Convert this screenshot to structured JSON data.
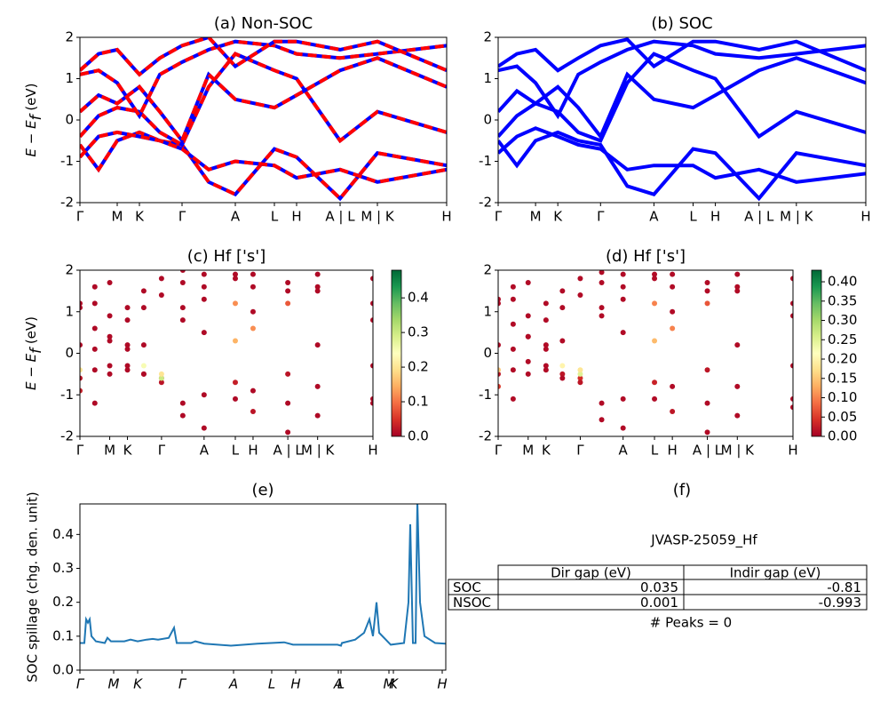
{
  "chart_data": [
    {
      "type": "line",
      "title": "(a) Non-SOC",
      "ylabel": {
        "symbol": "E − E",
        "subscript": "f",
        "unit": " (eV)"
      },
      "xlim": [
        0,
        4.13
      ],
      "ylim": [
        -2,
        2
      ],
      "yticks": [
        -2,
        -1,
        0,
        1,
        2
      ],
      "xticks": [
        {
          "value": 0,
          "label": "Γ"
        },
        {
          "value": 0.42,
          "label": "M"
        },
        {
          "value": 0.67,
          "label": "K"
        },
        {
          "value": 1.15,
          "label": "Γ"
        },
        {
          "value": 1.75,
          "label": "A"
        },
        {
          "value": 2.19,
          "label": "L"
        },
        {
          "value": 2.44,
          "label": "H"
        },
        {
          "value": 2.93,
          "label": "A | L"
        },
        {
          "value": 3.35,
          "label": "M | K"
        },
        {
          "value": 4.13,
          "label": "H"
        }
      ],
      "x": [
        0,
        0.21,
        0.42,
        0.67,
        0.9,
        1.15,
        1.45,
        1.75,
        2.19,
        2.44,
        2.93,
        3.35,
        4.13
      ],
      "color": "#ff0000",
      "underlay_color": "#0000ff",
      "dashed": true,
      "series": [
        {
          "values": [
            -0.6,
            -1.2,
            -0.5,
            -0.3,
            -0.5,
            -0.6,
            -1.5,
            -1.8,
            -0.7,
            -0.9,
            -1.9,
            -0.8,
            -1.1
          ]
        },
        {
          "values": [
            -0.9,
            -0.4,
            -0.3,
            -0.4,
            -0.5,
            -0.7,
            -1.2,
            -1.0,
            -1.1,
            -1.4,
            -1.2,
            -1.5,
            -1.2
          ]
        },
        {
          "values": [
            -0.4,
            0.1,
            0.3,
            0.2,
            -0.3,
            -0.6,
            0.8,
            1.6,
            1.2,
            1.0,
            -0.5,
            0.2,
            -0.3
          ]
        },
        {
          "values": [
            0.2,
            0.6,
            0.4,
            0.8,
            0.2,
            -0.5,
            1.1,
            0.5,
            0.3,
            0.6,
            1.2,
            1.5,
            0.8
          ]
        },
        {
          "values": [
            1.1,
            1.2,
            0.9,
            0.1,
            1.1,
            1.4,
            1.7,
            1.9,
            1.8,
            1.6,
            1.5,
            1.6,
            1.8
          ]
        },
        {
          "values": [
            1.2,
            1.6,
            1.7,
            1.1,
            1.5,
            1.8,
            2.0,
            1.3,
            1.9,
            1.9,
            1.7,
            1.9,
            1.2
          ]
        }
      ]
    },
    {
      "type": "line",
      "title": "(b) SOC",
      "xlim": [
        0,
        4.13
      ],
      "ylim": [
        -2,
        2
      ],
      "yticks": [
        -2,
        -1,
        0,
        1,
        2
      ],
      "xticks": [
        {
          "value": 0,
          "label": "Γ"
        },
        {
          "value": 0.42,
          "label": "M"
        },
        {
          "value": 0.67,
          "label": "K"
        },
        {
          "value": 1.15,
          "label": "Γ"
        },
        {
          "value": 1.75,
          "label": "A"
        },
        {
          "value": 2.19,
          "label": "L"
        },
        {
          "value": 2.44,
          "label": "H"
        },
        {
          "value": 2.93,
          "label": "A | L"
        },
        {
          "value": 3.35,
          "label": "M | K"
        },
        {
          "value": 4.13,
          "label": "H"
        }
      ],
      "x": [
        0,
        0.21,
        0.42,
        0.67,
        0.9,
        1.15,
        1.45,
        1.75,
        2.19,
        2.44,
        2.93,
        3.35,
        4.13
      ],
      "color": "#0000ff",
      "series": [
        {
          "values": [
            -0.5,
            -1.1,
            -0.5,
            -0.3,
            -0.5,
            -0.6,
            -1.6,
            -1.8,
            -0.7,
            -0.8,
            -1.9,
            -0.8,
            -1.1
          ]
        },
        {
          "values": [
            -0.8,
            -0.4,
            -0.2,
            -0.4,
            -0.6,
            -0.7,
            -1.2,
            -1.1,
            -1.1,
            -1.4,
            -1.2,
            -1.5,
            -1.3
          ]
        },
        {
          "values": [
            -0.4,
            0.1,
            0.4,
            0.2,
            -0.3,
            -0.5,
            0.9,
            1.6,
            1.2,
            1.0,
            -0.4,
            0.2,
            -0.3
          ]
        },
        {
          "values": [
            0.2,
            0.7,
            0.4,
            0.8,
            0.3,
            -0.4,
            1.1,
            0.5,
            0.3,
            0.6,
            1.2,
            1.5,
            0.9
          ]
        },
        {
          "values": [
            1.2,
            1.3,
            0.9,
            0.1,
            1.1,
            1.4,
            1.7,
            1.9,
            1.8,
            1.6,
            1.5,
            1.6,
            1.8
          ]
        },
        {
          "values": [
            1.3,
            1.6,
            1.7,
            1.2,
            1.5,
            1.8,
            1.95,
            1.3,
            1.9,
            1.9,
            1.7,
            1.9,
            1.2
          ]
        }
      ]
    },
    {
      "type": "scatter",
      "title": "(c)  Hf ['s']",
      "ylabel": {
        "symbol": "E − E",
        "subscript": "f",
        "unit": " (eV)"
      },
      "xlim": [
        0,
        4.13
      ],
      "ylim": [
        -2,
        2
      ],
      "yticks": [
        -2,
        -1,
        0,
        1,
        2
      ],
      "xticks": [
        {
          "value": 0,
          "label": "Γ"
        },
        {
          "value": 0.42,
          "label": "M"
        },
        {
          "value": 0.67,
          "label": "K"
        },
        {
          "value": 1.15,
          "label": "Γ"
        },
        {
          "value": 1.75,
          "label": "A"
        },
        {
          "value": 2.19,
          "label": "L"
        },
        {
          "value": 2.44,
          "label": "H"
        },
        {
          "value": 2.93,
          "label": "A | L"
        },
        {
          "value": 3.35,
          "label": "M | K"
        },
        {
          "value": 4.13,
          "label": "H"
        }
      ],
      "x": [
        0,
        0.21,
        0.42,
        0.67,
        0.9,
        1.15,
        1.45,
        1.75,
        2.19,
        2.44,
        2.93,
        3.35,
        4.13
      ],
      "colormap": "RdYlGn",
      "clim": [
        0,
        0.48
      ],
      "cticks": [
        {
          "value": 0,
          "label": "0.0"
        },
        0.1,
        0.2,
        0.3,
        0.4
      ],
      "series": [
        {
          "values": [
            -0.6,
            -1.2,
            -0.5,
            -0.3,
            -0.5,
            -0.6,
            -1.5,
            -1.8,
            -0.7,
            -0.9,
            -1.9,
            -0.8,
            -1.1
          ],
          "weights": [
            0.02,
            0.01,
            0.01,
            0.01,
            0.02,
            0.05,
            0.01,
            0.01,
            0.03,
            0.01,
            0.01,
            0.01,
            0.01
          ]
        },
        {
          "values": [
            -0.9,
            -0.4,
            -0.3,
            -0.4,
            -0.5,
            -0.7,
            -1.2,
            -1.0,
            -1.1,
            -1.4,
            -1.2,
            -1.5,
            -1.2
          ],
          "weights": [
            0.03,
            0.01,
            0.01,
            0.01,
            0.01,
            0.02,
            0.01,
            0.01,
            0.01,
            0.02,
            0.01,
            0.01,
            0.01
          ]
        },
        {
          "values": [
            -0.4,
            0.1,
            0.3,
            0.2,
            -0.3,
            -0.6,
            0.8,
            1.6,
            1.2,
            1.0,
            -0.5,
            0.2,
            -0.3
          ],
          "weights": [
            0.2,
            0.01,
            0.01,
            0.01,
            0.25,
            0.3,
            0.01,
            0.01,
            0.12,
            0.01,
            0.02,
            0.01,
            0.01
          ]
        },
        {
          "values": [
            0.2,
            0.6,
            0.4,
            0.8,
            0.2,
            -0.5,
            1.1,
            0.5,
            0.3,
            0.6,
            1.2,
            1.5,
            0.8
          ],
          "weights": [
            0.01,
            0.01,
            0.01,
            0.01,
            0.01,
            0.2,
            0.01,
            0.01,
            0.15,
            0.12,
            0.08,
            0.01,
            0.01
          ]
        },
        {
          "values": [
            1.1,
            1.2,
            0.9,
            0.1,
            1.1,
            1.4,
            1.7,
            1.9,
            1.8,
            1.6,
            1.5,
            1.6,
            1.8
          ],
          "weights": [
            0.01,
            0.01,
            0.01,
            0.01,
            0.01,
            0.01,
            0.01,
            0.01,
            0.01,
            0.01,
            0.01,
            0.01,
            0.01
          ]
        },
        {
          "values": [
            1.2,
            1.6,
            1.7,
            1.1,
            1.5,
            1.8,
            2.0,
            1.3,
            1.9,
            1.9,
            1.7,
            1.9,
            1.2
          ],
          "weights": [
            0.01,
            0.01,
            0.01,
            0.01,
            0.01,
            0.01,
            0.01,
            0.01,
            0.01,
            0.01,
            0.01,
            0.01,
            0.01
          ]
        }
      ]
    },
    {
      "type": "scatter",
      "title": "(d) Hf ['s']",
      "xlim": [
        0,
        4.13
      ],
      "ylim": [
        -2,
        2
      ],
      "yticks": [
        -2,
        -1,
        0,
        1,
        2
      ],
      "xticks": [
        {
          "value": 0,
          "label": "Γ"
        },
        {
          "value": 0.42,
          "label": "M"
        },
        {
          "value": 0.67,
          "label": "K"
        },
        {
          "value": 1.15,
          "label": "Γ"
        },
        {
          "value": 1.75,
          "label": "A"
        },
        {
          "value": 2.19,
          "label": "L"
        },
        {
          "value": 2.44,
          "label": "H"
        },
        {
          "value": 2.93,
          "label": "A | L"
        },
        {
          "value": 3.35,
          "label": "M | K"
        },
        {
          "value": 4.13,
          "label": "H"
        }
      ],
      "x": [
        0,
        0.21,
        0.42,
        0.67,
        0.9,
        1.15,
        1.45,
        1.75,
        2.19,
        2.44,
        2.93,
        3.35,
        4.13
      ],
      "colormap": "RdYlGn",
      "clim": [
        0,
        0.43
      ],
      "cticks": [
        {
          "value": 0,
          "label": "0.00"
        },
        0.05,
        {
          "value": 0.1,
          "label": "0.10"
        },
        0.15,
        {
          "value": 0.2,
          "label": "0.20"
        },
        0.25,
        {
          "value": 0.3,
          "label": "0.30"
        },
        0.35,
        {
          "value": 0.4,
          "label": "0.40"
        }
      ],
      "series": [
        {
          "values": [
            -0.5,
            -1.1,
            -0.5,
            -0.3,
            -0.5,
            -0.6,
            -1.6,
            -1.8,
            -0.7,
            -0.8,
            -1.9,
            -0.8,
            -1.1
          ],
          "weights": [
            0.02,
            0.01,
            0.01,
            0.01,
            0.02,
            0.04,
            0.01,
            0.01,
            0.03,
            0.01,
            0.01,
            0.01,
            0.01
          ]
        },
        {
          "values": [
            -0.8,
            -0.4,
            -0.2,
            -0.4,
            -0.6,
            -0.7,
            -1.2,
            -1.1,
            -1.1,
            -1.4,
            -1.2,
            -1.5,
            -1.3
          ],
          "weights": [
            0.05,
            0.01,
            0.01,
            0.01,
            0.01,
            0.02,
            0.01,
            0.01,
            0.01,
            0.02,
            0.01,
            0.01,
            0.01
          ]
        },
        {
          "values": [
            -0.4,
            0.1,
            0.4,
            0.2,
            -0.3,
            -0.5,
            0.9,
            1.6,
            1.2,
            1.0,
            -0.4,
            0.2,
            -0.3
          ],
          "weights": [
            0.15,
            0.01,
            0.01,
            0.01,
            0.2,
            0.25,
            0.01,
            0.01,
            0.1,
            0.01,
            0.02,
            0.01,
            0.01
          ]
        },
        {
          "values": [
            0.2,
            0.7,
            0.4,
            0.8,
            0.3,
            -0.4,
            1.1,
            0.5,
            0.3,
            0.6,
            1.2,
            1.5,
            0.9
          ],
          "weights": [
            0.01,
            0.01,
            0.01,
            0.01,
            0.01,
            0.18,
            0.01,
            0.01,
            0.14,
            0.1,
            0.07,
            0.01,
            0.01
          ]
        },
        {
          "values": [
            1.2,
            1.3,
            0.9,
            0.1,
            1.1,
            1.4,
            1.7,
            1.9,
            1.8,
            1.6,
            1.5,
            1.6,
            1.8
          ],
          "weights": [
            0.01,
            0.01,
            0.01,
            0.01,
            0.01,
            0.01,
            0.01,
            0.01,
            0.01,
            0.01,
            0.01,
            0.01,
            0.01
          ]
        },
        {
          "values": [
            1.3,
            1.6,
            1.7,
            1.2,
            1.5,
            1.8,
            1.95,
            1.3,
            1.9,
            1.9,
            1.7,
            1.9,
            1.2
          ],
          "weights": [
            0.01,
            0.01,
            0.01,
            0.01,
            0.01,
            0.01,
            0.01,
            0.01,
            0.01,
            0.01,
            0.01,
            0.01,
            0.01
          ]
        }
      ]
    },
    {
      "type": "line",
      "title": "(e)",
      "ylabel_text": "SOC spillage (chg. den. unit)",
      "italic_xticks": true,
      "xlim": [
        0,
        4.12
      ],
      "ylim": [
        0,
        0.49
      ],
      "yticks": [
        {
          "value": 0,
          "label": "0.0"
        },
        0.1,
        0.2,
        0.3,
        0.4
      ],
      "xticks": [
        {
          "value": 0,
          "label": "Γ"
        },
        {
          "value": 0.38,
          "label": "M"
        },
        {
          "value": 0.65,
          "label": "K"
        },
        {
          "value": 1.15,
          "label": "Γ"
        },
        {
          "value": 1.73,
          "label": "A"
        },
        {
          "value": 2.16,
          "label": "L"
        },
        {
          "value": 2.43,
          "label": "H"
        },
        {
          "value": 2.91,
          "label": "A"
        },
        {
          "value": 2.94,
          "label": "L"
        },
        {
          "value": 3.48,
          "label": "M"
        },
        {
          "value": 3.53,
          "label": "K"
        },
        {
          "value": 4.08,
          "label": "H"
        }
      ],
      "color": "#1f77b4",
      "x": [
        0,
        0.05,
        0.07,
        0.09,
        0.11,
        0.13,
        0.18,
        0.28,
        0.31,
        0.35,
        0.5,
        0.57,
        0.65,
        0.75,
        0.82,
        0.88,
        1.0,
        1.06,
        1.09,
        1.25,
        1.3,
        1.4,
        1.7,
        2.0,
        2.3,
        2.4,
        2.9,
        2.94,
        2.95,
        3.1,
        3.2,
        3.26,
        3.3,
        3.34,
        3.37,
        3.5,
        3.65,
        3.7,
        3.72,
        3.75,
        3.78,
        3.8,
        3.83,
        3.88,
        4.0,
        4.12
      ],
      "values": [
        0.08,
        0.08,
        0.15,
        0.14,
        0.15,
        0.1,
        0.085,
        0.08,
        0.095,
        0.085,
        0.085,
        0.09,
        0.085,
        0.09,
        0.092,
        0.09,
        0.095,
        0.125,
        0.08,
        0.08,
        0.085,
        0.078,
        0.072,
        0.078,
        0.082,
        0.075,
        0.075,
        0.072,
        0.08,
        0.09,
        0.11,
        0.15,
        0.1,
        0.2,
        0.11,
        0.075,
        0.08,
        0.2,
        0.43,
        0.08,
        0.08,
        0.5,
        0.2,
        0.1,
        0.08,
        0.078
      ]
    },
    {
      "type": "table",
      "title": "(f)",
      "caption": "JVASP-25059_Hf",
      "columns": [
        "Dir gap (eV)",
        "Indir gap (eV)"
      ],
      "rows": [
        {
          "label": "SOC",
          "cells": [
            0.035,
            -0.81
          ]
        },
        {
          "label": "NSOC",
          "cells": [
            0.001,
            -0.993
          ]
        }
      ],
      "footer": "# Peaks = 0"
    }
  ]
}
